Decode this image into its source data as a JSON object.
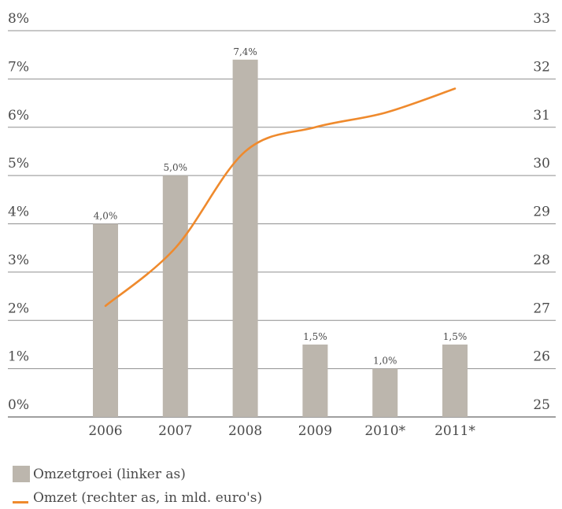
{
  "chart_data": {
    "type": "bar",
    "categories": [
      "2006",
      "2007",
      "2008",
      "2009",
      "2010*",
      "2011*"
    ],
    "series": [
      {
        "name": "Omzetgroei (linker as)",
        "type": "bar",
        "axis": "left",
        "values": [
          4.0,
          5.0,
          7.4,
          1.5,
          1.0,
          1.5
        ],
        "labels": [
          "4,0%",
          "5,0%",
          "7,4%",
          "1,5%",
          "1,0%",
          "1,5%"
        ],
        "color": "#bcb6ad"
      },
      {
        "name": "Omzet (rechter as, in mld. euro's)",
        "type": "line",
        "axis": "right",
        "values": [
          27.3,
          28.5,
          30.5,
          31.0,
          31.3,
          31.8
        ],
        "color": "#ef8a2d"
      }
    ],
    "y_left": {
      "ylim": [
        0,
        8
      ],
      "ticks": [
        0,
        1,
        2,
        3,
        4,
        5,
        6,
        7,
        8
      ],
      "tick_labels": [
        "0%",
        "1%",
        "2%",
        "3%",
        "4%",
        "5%",
        "6%",
        "7%",
        "8%"
      ]
    },
    "y_right": {
      "ylim": [
        25,
        33
      ],
      "ticks": [
        25,
        26,
        27,
        28,
        29,
        30,
        31,
        32,
        33
      ],
      "tick_labels": [
        "25",
        "26",
        "27",
        "28",
        "29",
        "30",
        "31",
        "32",
        "33"
      ]
    },
    "grid": true,
    "legend_position": "bottom-left"
  }
}
